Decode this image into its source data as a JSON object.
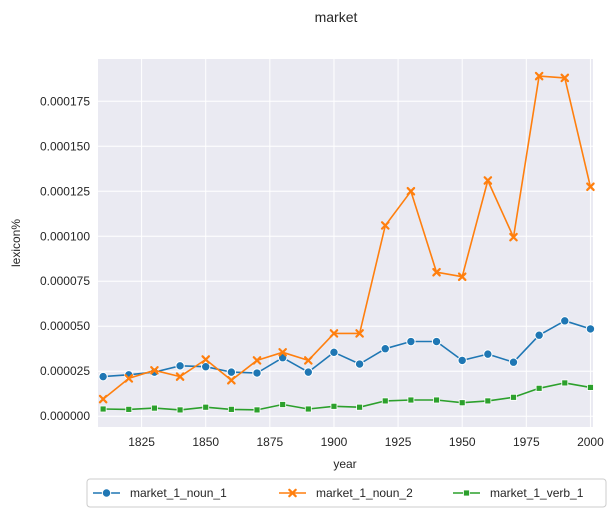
{
  "chart_data": {
    "type": "line",
    "title": "market",
    "xlabel": "year",
    "ylabel": "lexicon%",
    "x": [
      1810,
      1820,
      1830,
      1840,
      1850,
      1860,
      1870,
      1880,
      1890,
      1900,
      1910,
      1920,
      1930,
      1940,
      1950,
      1960,
      1970,
      1980,
      1990,
      2000
    ],
    "xlim": [
      1808,
      2001
    ],
    "ylim": [
      -6e-06,
      0.0001985
    ],
    "x_ticks": [
      1825,
      1850,
      1875,
      1900,
      1925,
      1950,
      1975,
      2000
    ],
    "y_ticks": [
      0.0,
      2.5e-05,
      5e-05,
      7.5e-05,
      0.0001,
      0.000125,
      0.00015,
      0.000175
    ],
    "y_tick_labels": [
      "0.000000",
      "0.000025",
      "0.000050",
      "0.000075",
      "0.000100",
      "0.000125",
      "0.000150",
      "0.000175"
    ],
    "grid": true,
    "legend_position": "bottom-center",
    "series": [
      {
        "name": "market_1_noun_1",
        "color": "#1f77b4",
        "marker": "circle",
        "values": [
          2.2e-05,
          2.3e-05,
          2.45e-05,
          2.8e-05,
          2.75e-05,
          2.45e-05,
          2.4e-05,
          3.25e-05,
          2.45e-05,
          3.55e-05,
          2.9e-05,
          3.75e-05,
          4.15e-05,
          4.15e-05,
          3.1e-05,
          3.45e-05,
          3e-05,
          4.5e-05,
          5.3e-05,
          4.85e-05
        ]
      },
      {
        "name": "market_1_noun_2",
        "color": "#ff7f0e",
        "marker": "x",
        "values": [
          9.5e-06,
          2.1e-05,
          2.55e-05,
          2.2e-05,
          3.15e-05,
          2e-05,
          3.1e-05,
          3.55e-05,
          3.1e-05,
          4.6e-05,
          4.6e-05,
          0.000106,
          0.000125,
          8e-05,
          7.75e-05,
          0.000131,
          9.95e-05,
          0.000189,
          0.000188,
          0.0001275
        ]
      },
      {
        "name": "market_1_verb_1",
        "color": "#2ca02c",
        "marker": "square",
        "values": [
          4e-06,
          3.8e-06,
          4.5e-06,
          3.5e-06,
          5e-06,
          3.8e-06,
          3.5e-06,
          6.5e-06,
          4e-06,
          5.5e-06,
          5e-06,
          8.5e-06,
          9e-06,
          9e-06,
          7.5e-06,
          8.5e-06,
          1.05e-05,
          1.55e-05,
          1.85e-05,
          1.6e-05
        ]
      }
    ]
  }
}
